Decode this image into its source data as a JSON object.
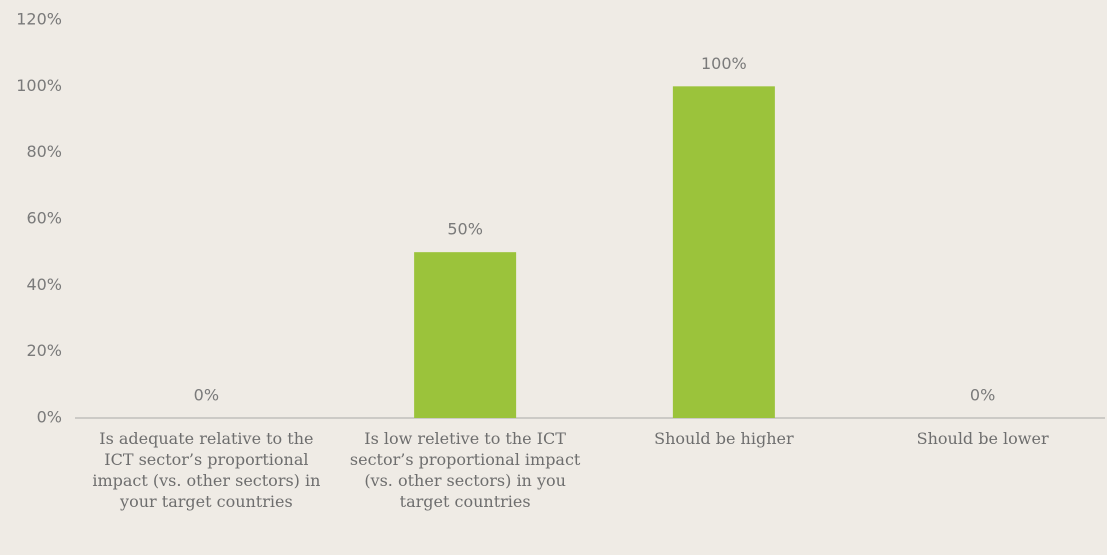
{
  "chart_data": {
    "type": "bar",
    "categories": [
      "Is adequate relative to the ICT sector’s proportional impact (vs. other sectors) in your target countries",
      "Is low reletive to the ICT sector’s proportional impact (vs. other sectors) in you target countries",
      "Should be higher",
      "Should be lower"
    ],
    "values": [
      0,
      50,
      100,
      0
    ],
    "value_labels": [
      "0%",
      "50%",
      "100%",
      "0%"
    ],
    "color": "#9bc33b",
    "ylim": [
      0,
      120
    ],
    "yticks": [
      {
        "value": 0,
        "label": "0%"
      },
      {
        "value": 20,
        "label": "20%"
      },
      {
        "value": 40,
        "label": "40%"
      },
      {
        "value": 60,
        "label": "60%"
      },
      {
        "value": 80,
        "label": "80%"
      },
      {
        "value": 100,
        "label": "100%"
      },
      {
        "value": 120,
        "label": "120%"
      }
    ],
    "grid": false
  }
}
